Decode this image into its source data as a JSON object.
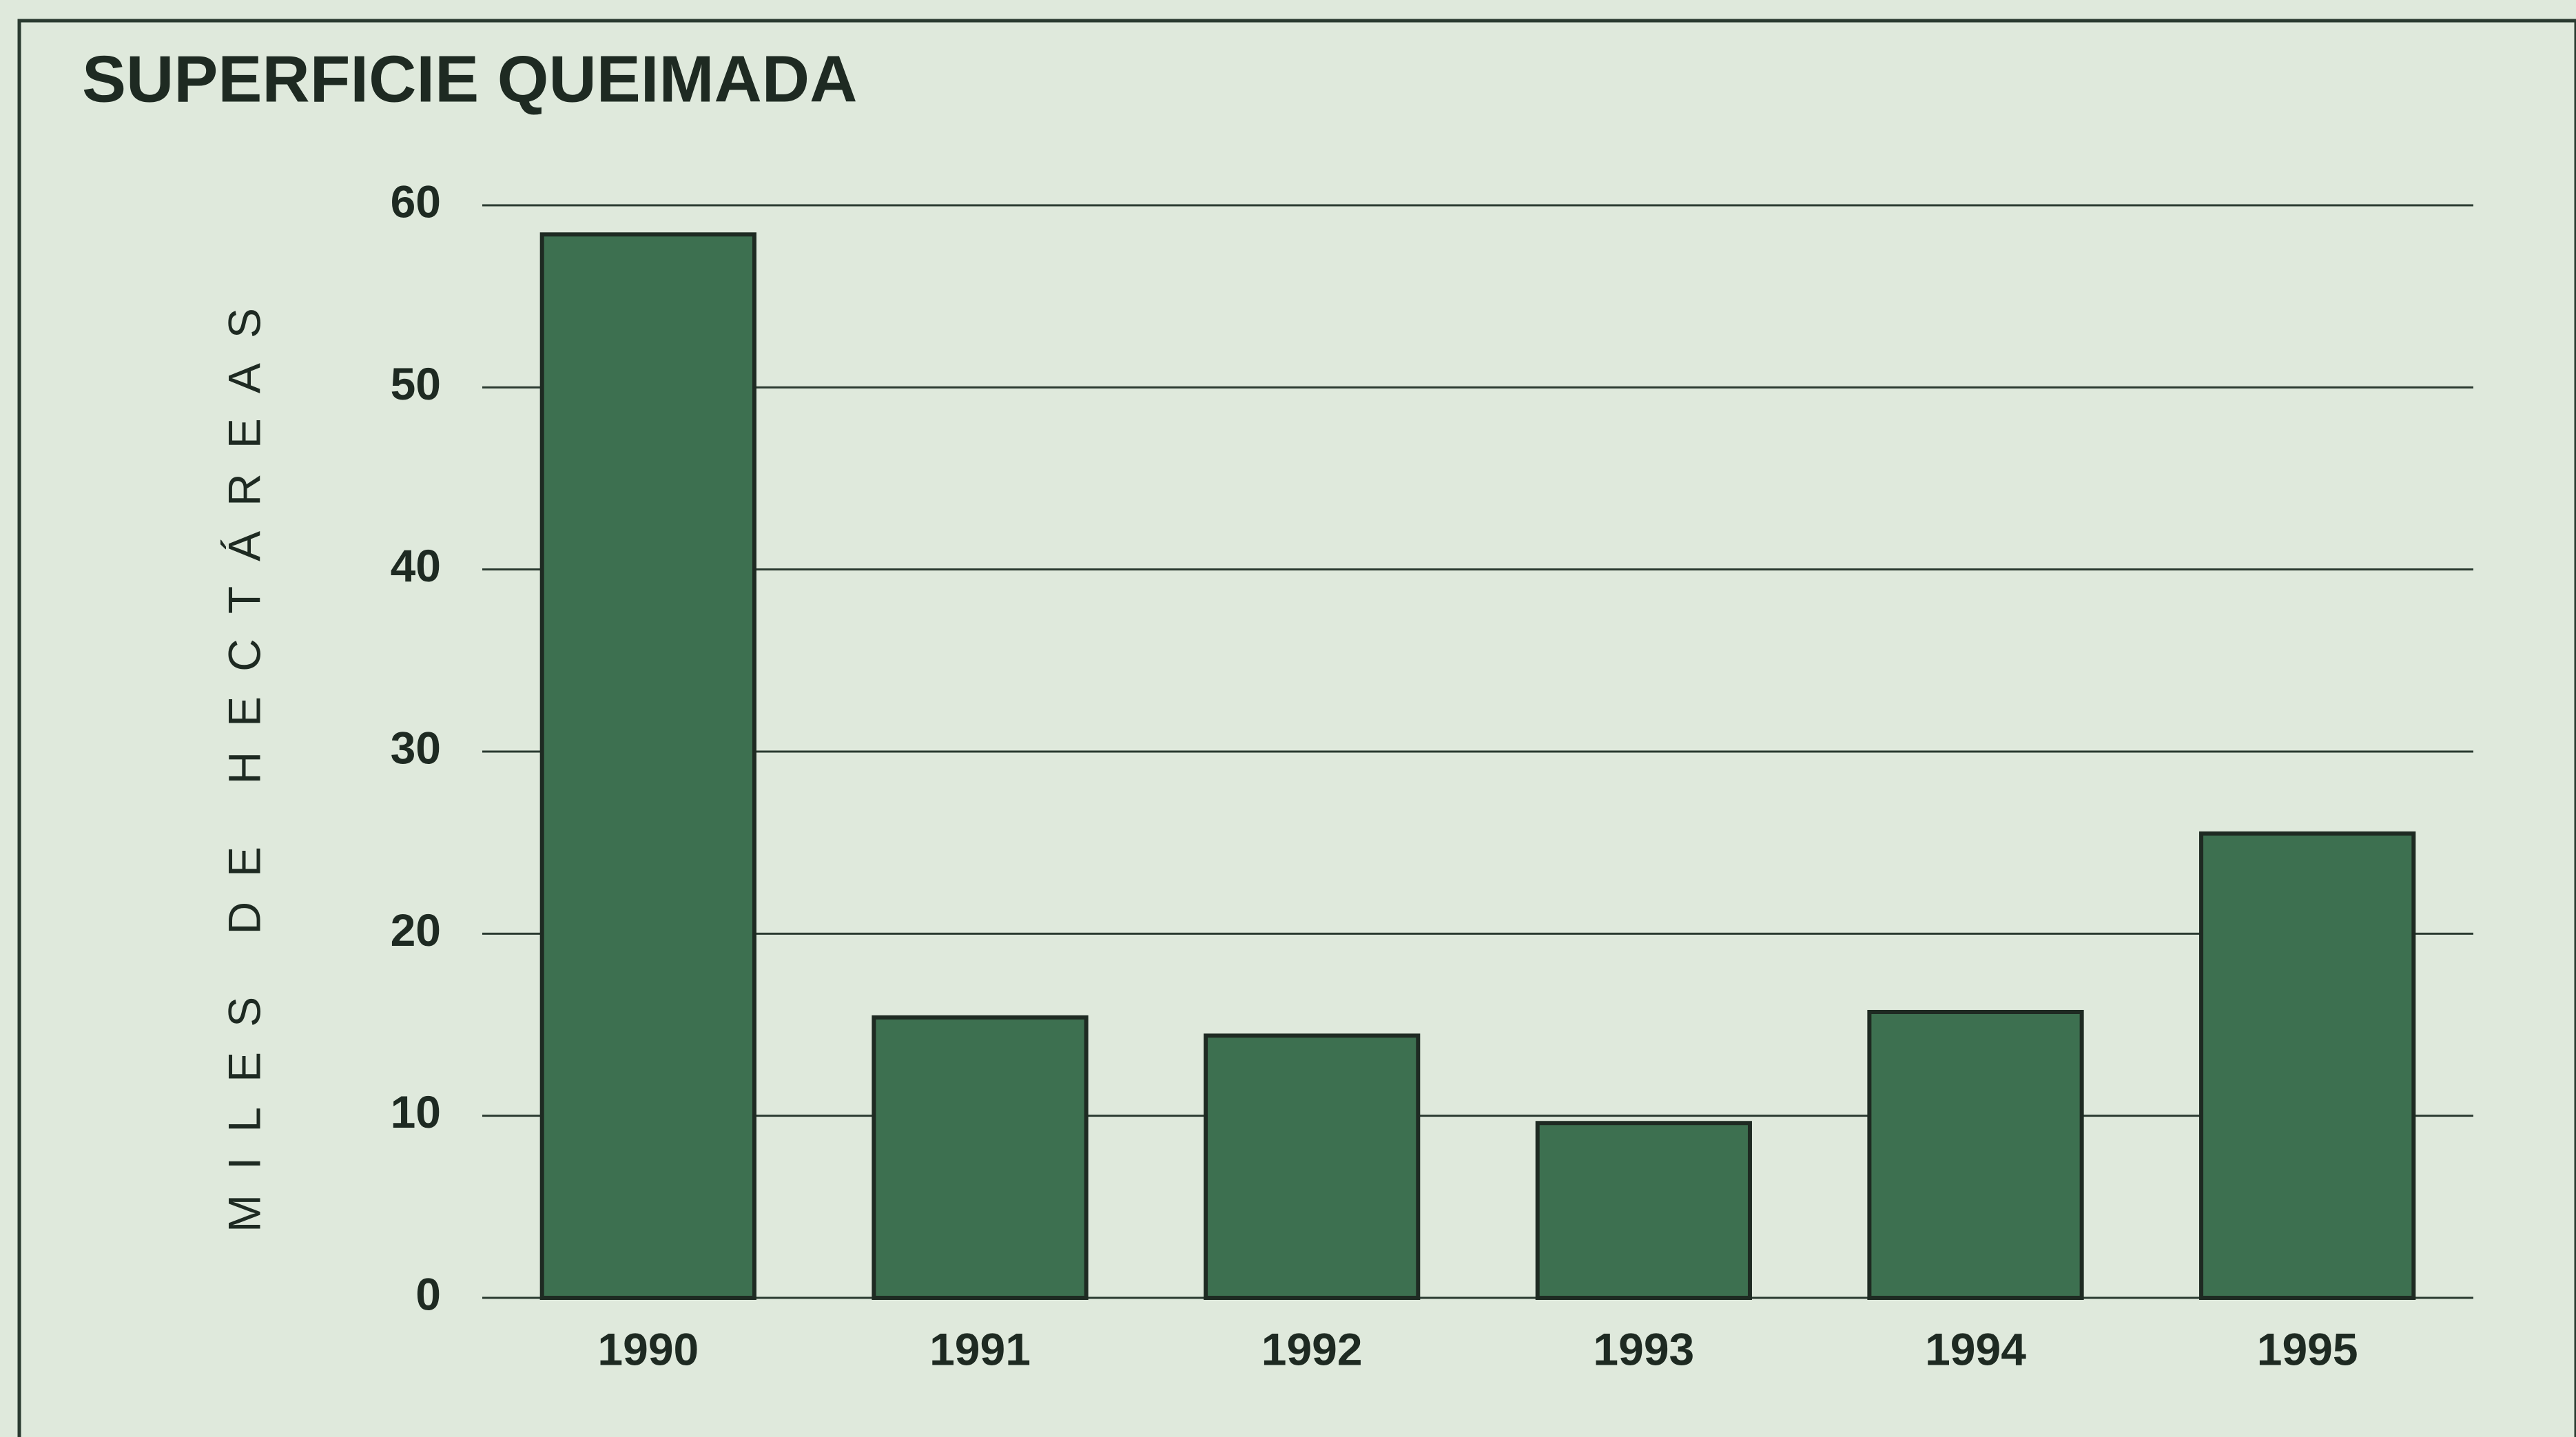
{
  "chart_data": {
    "type": "bar",
    "title": "SUPERFICIE QUEIMADA",
    "y_label": "MILES DE HECTÁREAS",
    "categories": [
      "1990",
      "1991",
      "1992",
      "1993",
      "1994",
      "1995"
    ],
    "values": [
      58.4,
      15.4,
      14.4,
      9.6,
      15.7,
      25.5
    ],
    "color": "#3d7050",
    "ylim": [
      0,
      60
    ],
    "yticks": [
      0,
      10,
      20,
      30,
      40,
      50,
      60
    ],
    "grid": true
  }
}
